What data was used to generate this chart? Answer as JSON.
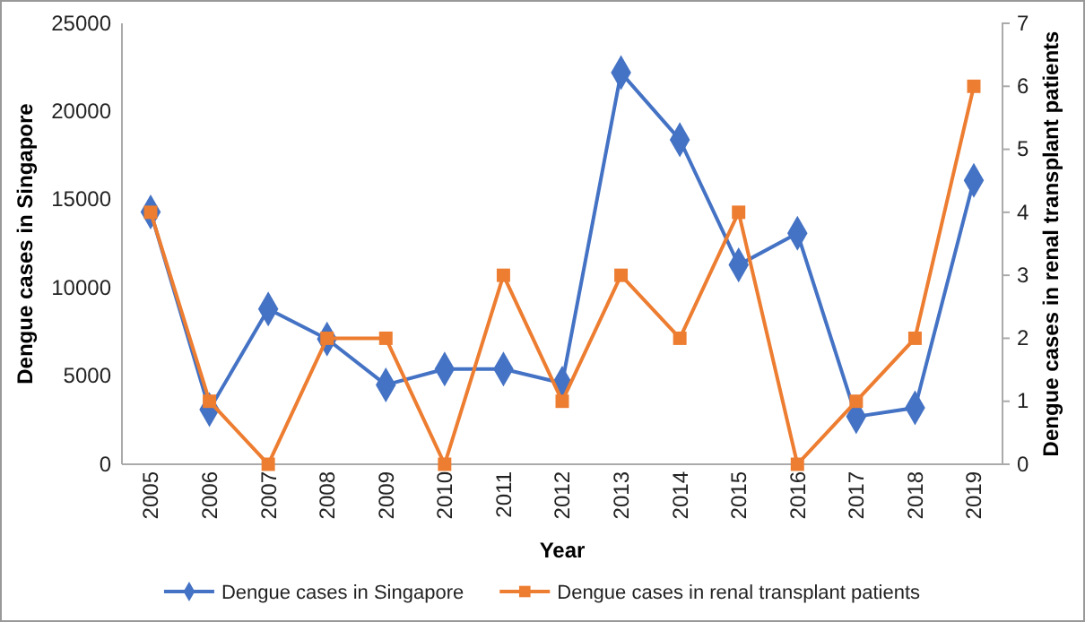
{
  "chart_data": {
    "type": "line",
    "xlabel": "Year",
    "ylabel": "Dengue cases in Singapore",
    "y2label": "Dengue cases in renal transplant patients",
    "categories": [
      "2005",
      "2006",
      "2007",
      "2008",
      "2009",
      "2010",
      "2011",
      "2012",
      "2013",
      "2014",
      "2015",
      "2016",
      "2017",
      "2018",
      "2019"
    ],
    "ylim": [
      0,
      25000
    ],
    "yticks": [
      0,
      5000,
      10000,
      15000,
      20000,
      25000
    ],
    "y2lim": [
      0,
      7
    ],
    "y2ticks": [
      0,
      1,
      2,
      3,
      4,
      5,
      6,
      7
    ],
    "legend": "bottom",
    "grid": false,
    "series": [
      {
        "name": "Dengue cases in Singapore",
        "color": "#4472c4",
        "marker": "diamond",
        "values": [
          14300,
          3100,
          8800,
          7100,
          4500,
          5400,
          5400,
          4600,
          22200,
          18400,
          11300,
          13100,
          2700,
          3200,
          16100
        ]
      },
      {
        "name": "Dengue cases in renal transplant patients",
        "color": "#ed7d31",
        "marker": "square",
        "axis": "y2",
        "values": [
          4,
          1,
          0,
          2,
          2,
          0,
          3,
          1,
          3,
          2,
          4,
          0,
          1,
          2,
          6
        ]
      }
    ]
  }
}
